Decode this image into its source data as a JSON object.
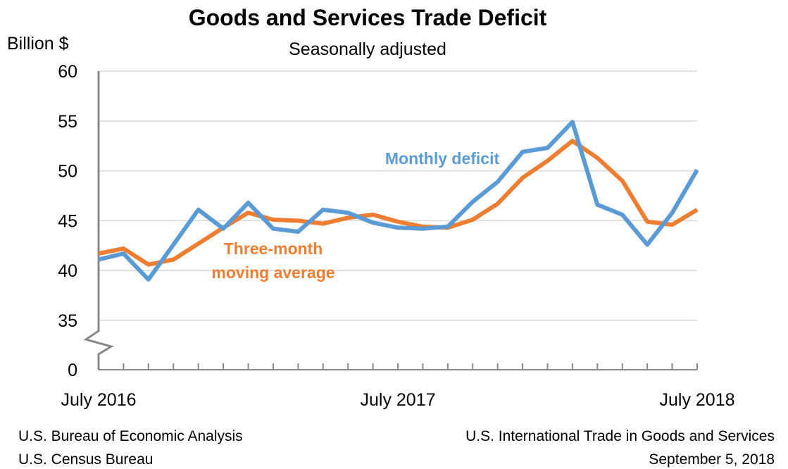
{
  "chart_data": {
    "type": "line",
    "title": "Goods and Services Trade Deficit",
    "subtitle": "Seasonally adjusted",
    "ylabel": "Billion $",
    "ylim": [
      35,
      60
    ],
    "y_ticks": [
      "60",
      "55",
      "50",
      "45",
      "40",
      "35",
      "0"
    ],
    "y_axis_break": true,
    "x_tick_labels": [
      "July 2016",
      "July 2017",
      "July 2018"
    ],
    "x": [
      "2016-07",
      "2016-08",
      "2016-09",
      "2016-10",
      "2016-11",
      "2016-12",
      "2017-01",
      "2017-02",
      "2017-03",
      "2017-04",
      "2017-05",
      "2017-06",
      "2017-07",
      "2017-08",
      "2017-09",
      "2017-10",
      "2017-11",
      "2017-12",
      "2018-01",
      "2018-02",
      "2018-03",
      "2018-04",
      "2018-05",
      "2018-06",
      "2018-07"
    ],
    "grid": true,
    "series": [
      {
        "name": "Monthly deficit",
        "color": "#5b9bd5",
        "values": [
          41.1,
          41.7,
          39.1,
          42.6,
          46.1,
          44.2,
          46.8,
          44.2,
          43.9,
          46.1,
          45.8,
          44.8,
          44.3,
          44.2,
          44.4,
          46.9,
          48.9,
          51.9,
          52.3,
          54.9,
          46.6,
          45.6,
          42.6,
          45.8,
          50.1
        ]
      },
      {
        "name": "Three-month moving average",
        "label_lines": [
          "Three-month",
          "moving average"
        ],
        "color": "#ed7d31",
        "values": [
          41.7,
          42.2,
          40.6,
          41.1,
          42.7,
          44.3,
          45.8,
          45.1,
          45.0,
          44.7,
          45.3,
          45.6,
          44.9,
          44.4,
          44.3,
          45.1,
          46.7,
          49.3,
          51.0,
          53.0,
          51.3,
          49.0,
          44.9,
          44.6,
          46.1
        ]
      }
    ]
  },
  "footer": {
    "left": [
      "U.S. Bureau of Economic Analysis",
      "U.S. Census Bureau"
    ],
    "right": [
      "U.S. International Trade in Goods and Services",
      "September 5, 2018"
    ]
  }
}
